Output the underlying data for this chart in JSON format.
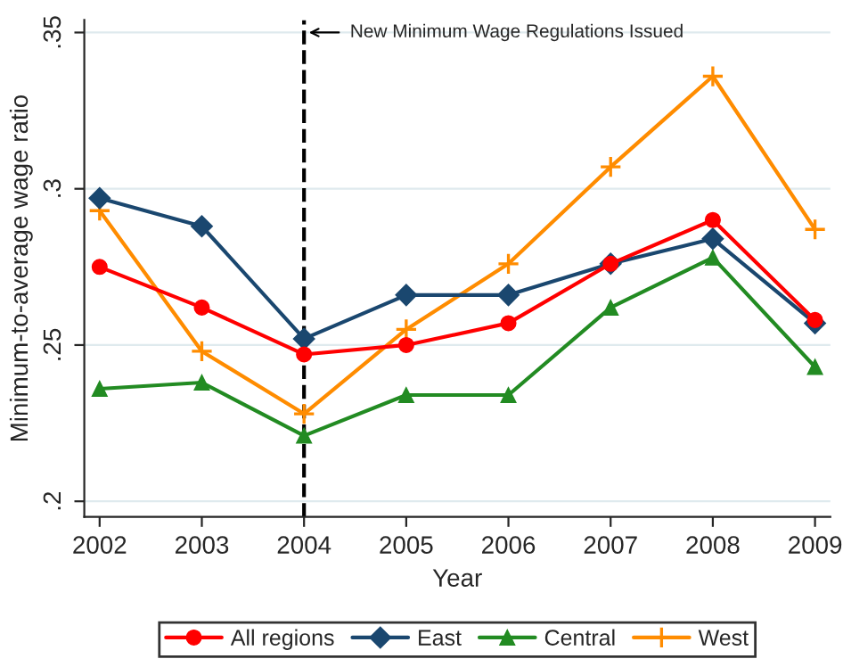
{
  "chart_data": {
    "type": "line",
    "xlabel": "Year",
    "ylabel": "Minimum-to-average wage ratio",
    "x": [
      2002,
      2003,
      2004,
      2005,
      2006,
      2007,
      2008,
      2009
    ],
    "series": [
      {
        "name": "All regions",
        "color": "#ff0000",
        "marker": "circle",
        "values": [
          0.275,
          0.262,
          0.247,
          0.25,
          0.257,
          0.276,
          0.29,
          0.258
        ]
      },
      {
        "name": "East",
        "color": "#1a476f",
        "marker": "diamond",
        "values": [
          0.297,
          0.288,
          0.252,
          0.266,
          0.266,
          0.276,
          0.284,
          0.257
        ]
      },
      {
        "name": "Central",
        "color": "#228b22",
        "marker": "triangle",
        "values": [
          0.236,
          0.238,
          0.221,
          0.234,
          0.234,
          0.262,
          0.278,
          0.243
        ]
      },
      {
        "name": "West",
        "color": "#ff8c00",
        "marker": "cross",
        "values": [
          0.293,
          0.248,
          0.228,
          0.255,
          0.276,
          0.307,
          0.336,
          0.287
        ]
      }
    ],
    "xlim": [
      2001.85,
      2009.15
    ],
    "xticks": [
      2002,
      2003,
      2004,
      2005,
      2006,
      2007,
      2008,
      2009
    ],
    "ylim": [
      0.195,
      0.354
    ],
    "yticks": [
      {
        "value": 0.2,
        "label": ".2"
      },
      {
        "value": 0.25,
        "label": ".25"
      },
      {
        "value": 0.3,
        "label": ".3"
      },
      {
        "value": 0.35,
        "label": ".35"
      }
    ],
    "ref_lines": [
      {
        "axis": "x",
        "value": 2004,
        "label": "New Minimum Wage Regulations Issued",
        "color": "#000000",
        "line_style": "dashed"
      }
    ],
    "grid": "y",
    "legend": "bottom",
    "line_style": "solid"
  }
}
